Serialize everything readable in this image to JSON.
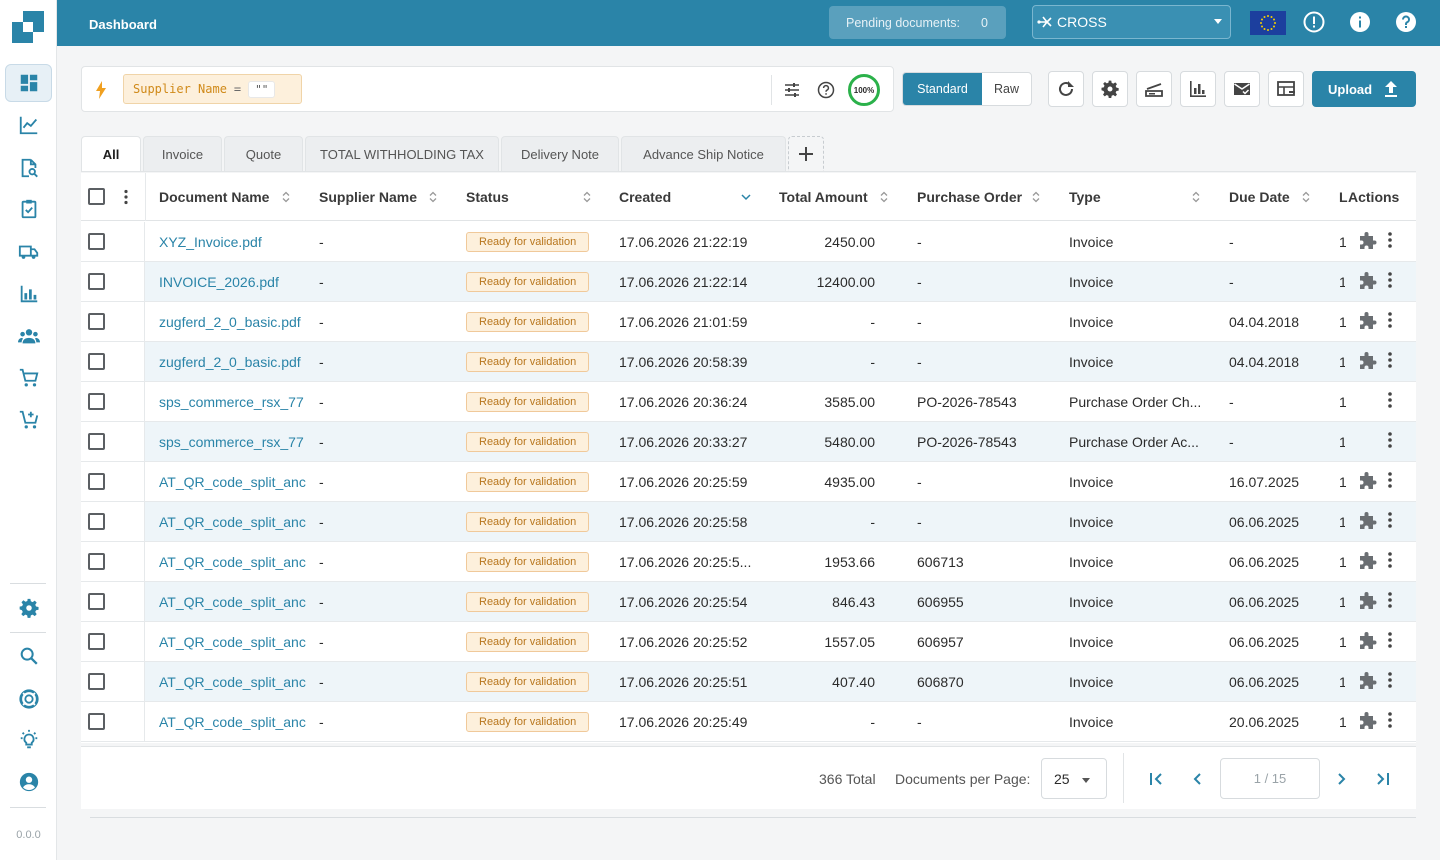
{
  "header": {
    "title": "Dashboard",
    "pending_label": "Pending documents:",
    "pending_count": "0",
    "workflow": "CROSS",
    "region_flag": "eu-flag-icon"
  },
  "filter": {
    "field": "Supplier Name",
    "operator": "=",
    "value": "\"\"",
    "completeness": "100%"
  },
  "view_toggle": {
    "standard": "Standard",
    "raw": "Raw",
    "selected": "Standard"
  },
  "toolbar": {
    "upload_label": "Upload"
  },
  "tabs": [
    {
      "label": "All"
    },
    {
      "label": "Invoice"
    },
    {
      "label": "Quote"
    },
    {
      "label": "TOTAL WITHHOLDING TAX"
    },
    {
      "label": "Delivery Note"
    },
    {
      "label": "Advance Ship Notice"
    }
  ],
  "table": {
    "columns": {
      "document_name": "Document Name",
      "supplier_name": "Supplier Name",
      "status": "Status",
      "created": "Created",
      "total_amount": "Total Amount",
      "purchase_order": "Purchase Order",
      "type": "Type",
      "due_date": "Due Date",
      "truncated": "L",
      "actions": "Actions"
    },
    "rows": [
      {
        "name": "XYZ_Invoice.pdf",
        "supplier": "-",
        "status": "Ready for validation",
        "created": "17.06.2026 21:22:19",
        "amount": "2450.00",
        "po": "-",
        "type": "Invoice",
        "due": "-",
        "extra": "1",
        "puzzle": true
      },
      {
        "name": "INVOICE_2026.pdf",
        "supplier": "-",
        "status": "Ready for validation",
        "created": "17.06.2026 21:22:14",
        "amount": "12400.00",
        "po": "-",
        "type": "Invoice",
        "due": "-",
        "extra": "1",
        "puzzle": true
      },
      {
        "name": "zugferd_2_0_basic.pdf",
        "supplier": "-",
        "status": "Ready for validation",
        "created": "17.06.2026 21:01:59",
        "amount": "-",
        "po": "-",
        "type": "Invoice",
        "due": "04.04.2018",
        "extra": "1",
        "puzzle": true
      },
      {
        "name": "zugferd_2_0_basic.pdf",
        "supplier": "-",
        "status": "Ready for validation",
        "created": "17.06.2026 20:58:39",
        "amount": "-",
        "po": "-",
        "type": "Invoice",
        "due": "04.04.2018",
        "extra": "1",
        "puzzle": true
      },
      {
        "name": "sps_commerce_rsx_77",
        "supplier": "-",
        "status": "Ready for validation",
        "created": "17.06.2026 20:36:24",
        "amount": "3585.00",
        "po": "PO-2026-78543",
        "type": "Purchase Order Ch...",
        "due": "-",
        "extra": "1",
        "puzzle": false
      },
      {
        "name": "sps_commerce_rsx_77",
        "supplier": "-",
        "status": "Ready for validation",
        "created": "17.06.2026 20:33:27",
        "amount": "5480.00",
        "po": "PO-2026-78543",
        "type": "Purchase Order Ac...",
        "due": "-",
        "extra": "1",
        "puzzle": false
      },
      {
        "name": "AT_QR_code_split_anc",
        "supplier": "-",
        "status": "Ready for validation",
        "created": "17.06.2026 20:25:59",
        "amount": "4935.00",
        "po": "-",
        "type": "Invoice",
        "due": "16.07.2025",
        "extra": "1",
        "puzzle": true
      },
      {
        "name": "AT_QR_code_split_anc",
        "supplier": "-",
        "status": "Ready for validation",
        "created": "17.06.2026 20:25:58",
        "amount": "-",
        "po": "-",
        "type": "Invoice",
        "due": "06.06.2025",
        "extra": "1",
        "puzzle": true
      },
      {
        "name": "AT_QR_code_split_anc",
        "supplier": "-",
        "status": "Ready for validation",
        "created": "17.06.2026 20:25:5...",
        "amount": "1953.66",
        "po": "606713",
        "type": "Invoice",
        "due": "06.06.2025",
        "extra": "1",
        "puzzle": true
      },
      {
        "name": "AT_QR_code_split_anc",
        "supplier": "-",
        "status": "Ready for validation",
        "created": "17.06.2026 20:25:54",
        "amount": "846.43",
        "po": "606955",
        "type": "Invoice",
        "due": "06.06.2025",
        "extra": "1",
        "puzzle": true
      },
      {
        "name": "AT_QR_code_split_anc",
        "supplier": "-",
        "status": "Ready for validation",
        "created": "17.06.2026 20:25:52",
        "amount": "1557.05",
        "po": "606957",
        "type": "Invoice",
        "due": "06.06.2025",
        "extra": "1",
        "puzzle": true
      },
      {
        "name": "AT_QR_code_split_anc",
        "supplier": "-",
        "status": "Ready for validation",
        "created": "17.06.2026 20:25:51",
        "amount": "407.40",
        "po": "606870",
        "type": "Invoice",
        "due": "06.06.2025",
        "extra": "1",
        "puzzle": true
      },
      {
        "name": "AT_QR_code_split_anc",
        "supplier": "-",
        "status": "Ready for validation",
        "created": "17.06.2026 20:25:49",
        "amount": "-",
        "po": "-",
        "type": "Invoice",
        "due": "20.06.2025",
        "extra": "1",
        "puzzle": true
      }
    ]
  },
  "pagination": {
    "total": "366 Total",
    "per_page_label": "Documents per Page:",
    "per_page": "25",
    "page": "1 / 15"
  },
  "sidebar": {
    "version": "0.0.0",
    "items": [
      "dashboard-icon",
      "analytics-icon",
      "document-search-icon",
      "clipboard-check-icon",
      "truck-icon",
      "bar-chart-icon",
      "users-icon",
      "cart-icon",
      "cart-add-icon",
      "settings-icon",
      "search-icon",
      "support-icon",
      "lightbulb-icon",
      "account-icon"
    ]
  },
  "colors": {
    "brand": "#2a84a8",
    "status_badge": "#fdf0dc",
    "status_text": "#b8761d",
    "completeness": "#2bb14a"
  }
}
